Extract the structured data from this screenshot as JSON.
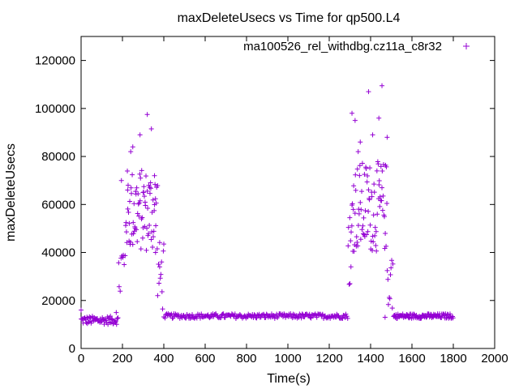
{
  "chart_data": {
    "type": "scatter",
    "title": "maxDeleteUsecs vs Time for qp500.L4",
    "xlabel": "Time(s)",
    "ylabel": "maxDeleteUsecs",
    "xlim": [
      0,
      2000
    ],
    "ylim": [
      0,
      130000
    ],
    "x_ticks": [
      0,
      200,
      400,
      600,
      800,
      1000,
      1200,
      1400,
      1600,
      1800,
      2000
    ],
    "y_ticks": [
      0,
      20000,
      40000,
      60000,
      80000,
      100000,
      120000
    ],
    "grid": false,
    "legend_position": "top-right",
    "marker": "+",
    "series": [
      {
        "name": "ma100526_rel_withdbg.cz11a_c8r32",
        "color": "#9400d3",
        "phases": [
          {
            "x_start": 0,
            "x_end": 180,
            "y_low": 10000,
            "y_high": 13500,
            "spacing": 3
          },
          {
            "x_start": 180,
            "x_end": 215,
            "y_low": 15000,
            "y_high": 50000,
            "spacing": 4
          },
          {
            "x_start": 215,
            "x_end": 370,
            "y_low": 40000,
            "y_high": 75000,
            "spacing": 2
          },
          {
            "x_start": 370,
            "x_end": 400,
            "y_low": 15000,
            "y_high": 45000,
            "spacing": 3
          },
          {
            "x_start": 400,
            "x_end": 1290,
            "y_low": 12500,
            "y_high": 14500,
            "spacing": 4
          },
          {
            "x_start": 1290,
            "x_end": 1310,
            "y_low": 25000,
            "y_high": 60000,
            "spacing": 3
          },
          {
            "x_start": 1310,
            "x_end": 1480,
            "y_low": 40000,
            "y_high": 78000,
            "spacing": 2
          },
          {
            "x_start": 1480,
            "x_end": 1510,
            "y_low": 15000,
            "y_high": 45000,
            "spacing": 3
          },
          {
            "x_start": 1510,
            "x_end": 1800,
            "y_low": 12500,
            "y_high": 14500,
            "spacing": 3
          }
        ],
        "outliers": [
          {
            "x": 0,
            "y": 16000
          },
          {
            "x": 170,
            "y": 15000
          },
          {
            "x": 195,
            "y": 70000
          },
          {
            "x": 225,
            "y": 66000
          },
          {
            "x": 240,
            "y": 82000
          },
          {
            "x": 250,
            "y": 84000
          },
          {
            "x": 285,
            "y": 89000
          },
          {
            "x": 300,
            "y": 65000
          },
          {
            "x": 320,
            "y": 97500
          },
          {
            "x": 340,
            "y": 91500
          },
          {
            "x": 355,
            "y": 72000
          },
          {
            "x": 360,
            "y": 40000
          },
          {
            "x": 380,
            "y": 34000
          },
          {
            "x": 400,
            "y": 43500
          },
          {
            "x": 1300,
            "y": 27000
          },
          {
            "x": 1305,
            "y": 34000
          },
          {
            "x": 1310,
            "y": 98000
          },
          {
            "x": 1325,
            "y": 95000
          },
          {
            "x": 1340,
            "y": 82000
          },
          {
            "x": 1350,
            "y": 86000
          },
          {
            "x": 1390,
            "y": 107000
          },
          {
            "x": 1410,
            "y": 89000
          },
          {
            "x": 1440,
            "y": 96000
          },
          {
            "x": 1455,
            "y": 109500
          },
          {
            "x": 1480,
            "y": 88000
          },
          {
            "x": 1470,
            "y": 13000
          }
        ]
      }
    ]
  }
}
